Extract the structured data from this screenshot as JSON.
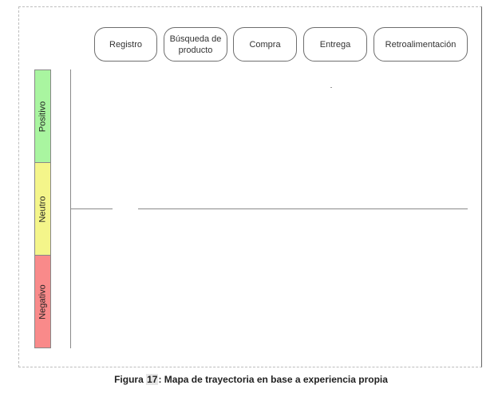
{
  "stages": [
    "Registro",
    "Búsqueda de producto",
    "Compra",
    "Entrega",
    "Retroalimentación"
  ],
  "zones": [
    {
      "label": "Positivo",
      "color": "#a9f5a0"
    },
    {
      "label": "Neutro",
      "color": "#f4f58a"
    },
    {
      "label": "Negativo",
      "color": "#f98a8a"
    }
  ],
  "caption": {
    "prefix": "Figura ",
    "number": "17",
    "text": ": Mapa de trayectoria en base a experiencia propia"
  }
}
